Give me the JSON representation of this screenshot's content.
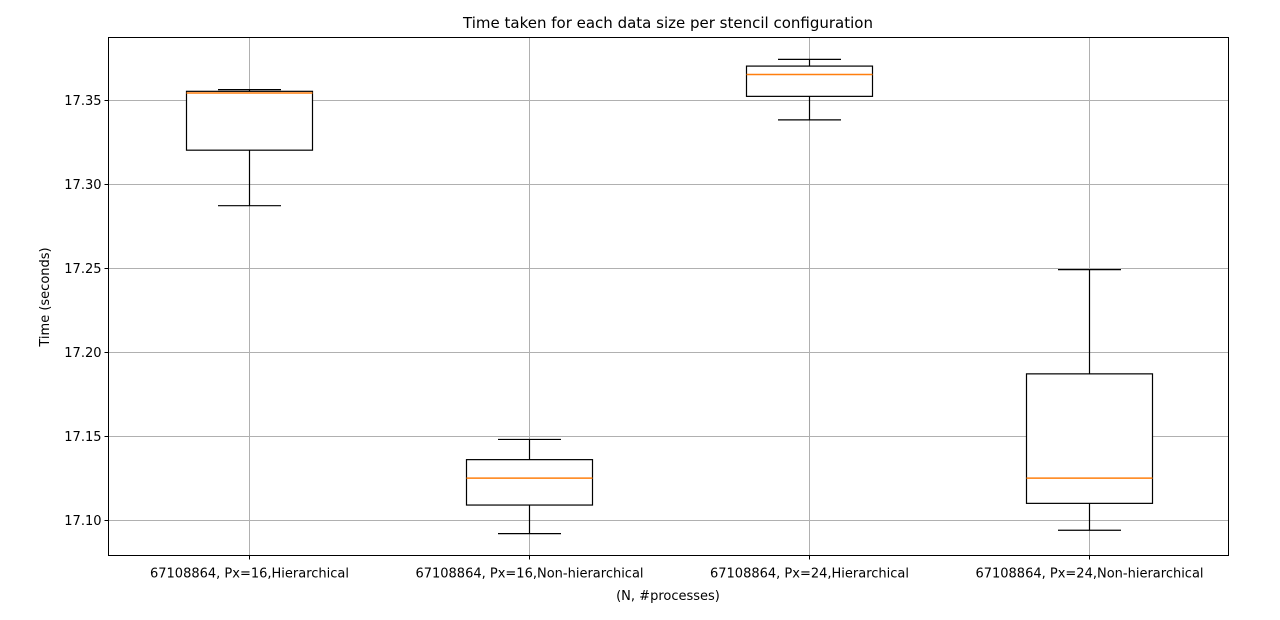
{
  "chart_data": {
    "type": "box",
    "title": "Time taken for each data size per stencil configuration",
    "xlabel": "(N, #processes)",
    "ylabel": "Time (seconds)",
    "ylim": [
      17.079,
      17.387
    ],
    "yticks": [
      "17.10",
      "17.15",
      "17.20",
      "17.25",
      "17.30",
      "17.35"
    ],
    "ytick_values": [
      17.1,
      17.15,
      17.2,
      17.25,
      17.3,
      17.35
    ],
    "grid": true,
    "categories": [
      "67108864, Px=16,Hierarchical",
      "67108864, Px=16,Non-hierarchical",
      "67108864, Px=24,Hierarchical",
      "67108864, Px=24,Non-hierarchical"
    ],
    "boxes": [
      {
        "whisker_low": 17.287,
        "q1": 17.32,
        "median": 17.354,
        "q3": 17.355,
        "whisker_high": 17.356
      },
      {
        "whisker_low": 17.092,
        "q1": 17.109,
        "median": 17.125,
        "q3": 17.136,
        "whisker_high": 17.148
      },
      {
        "whisker_low": 17.338,
        "q1": 17.352,
        "median": 17.365,
        "q3": 17.37,
        "whisker_high": 17.374
      },
      {
        "whisker_low": 17.094,
        "q1": 17.11,
        "median": 17.125,
        "q3": 17.187,
        "whisker_high": 17.249
      }
    ],
    "colors": {
      "box": "#000000",
      "median": "#ff7f0e",
      "grid": "#b0b0b0"
    }
  }
}
